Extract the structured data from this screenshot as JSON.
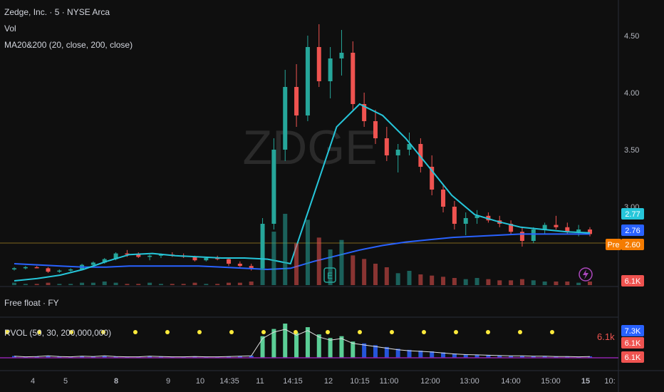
{
  "header": {
    "symbol_title": "Zedge, Inc. · 5 · NYSE Arca",
    "vol_label": "Vol",
    "ma_label": "MA20&200 (20, close, 200, close)",
    "watermark": "ZDGE"
  },
  "panels": {
    "free_float_label": "Free float · FY",
    "rvol_label": "RVOL (50, 30, 200,000,000)",
    "rvol_value": "6.1k"
  },
  "price_axis": {
    "ticks": [
      "4.50",
      "4.00",
      "3.50",
      "3.00"
    ],
    "badges": [
      {
        "label": "2.77",
        "color": "#26c6da"
      },
      {
        "label": "2.76",
        "color": "#2962ff"
      },
      {
        "label": "Pre",
        "color": "#f57c00"
      },
      {
        "label": "2.60",
        "color": "#f57c00"
      },
      {
        "label": "6.1K",
        "color": "#ef5350"
      },
      {
        "label": "7.3K",
        "color": "#2962ff"
      },
      {
        "label": "6.1K",
        "color": "#ef5350"
      },
      {
        "label": "6.1K",
        "color": "#ef5350"
      }
    ]
  },
  "time_axis": {
    "ticks": [
      "4",
      "5",
      "8",
      "9",
      "10",
      "14:35",
      "11",
      "14:15",
      "12",
      "10:15",
      "11:00",
      "12:00",
      "13:00",
      "14:00",
      "15:00",
      "15",
      "10:"
    ]
  },
  "colors": {
    "bg": "#0f0f0f",
    "up": "#26a69a",
    "down": "#ef5350",
    "ma20": "#26c6da",
    "ma200": "#2962ff",
    "dots": "#ffeb3b",
    "rvol_bright": "#69f0ae"
  },
  "icons": [
    "earnings-e-icon",
    "lightning-icon"
  ],
  "chart_data": {
    "type": "candlestick",
    "symbol": "ZDGE",
    "y_axis_range": [
      2.3,
      4.75
    ],
    "pre_market_price": 2.6,
    "last_price": 2.76,
    "ma20_last": 2.77,
    "ma200_last": 2.76,
    "series": [
      {
        "name": "MA20",
        "values": [
          2.35,
          2.37,
          2.4,
          2.45,
          2.52,
          2.58,
          2.59,
          2.57,
          2.56,
          2.55,
          2.55,
          2.54,
          2.5,
          3.1,
          3.7,
          3.9,
          3.8,
          3.6,
          3.35,
          3.1,
          2.93,
          2.87,
          2.82,
          2.8,
          2.78,
          2.77
        ]
      },
      {
        "name": "MA200",
        "values": [
          2.5,
          2.49,
          2.48,
          2.47,
          2.47,
          2.48,
          2.48,
          2.48,
          2.48,
          2.47,
          2.46,
          2.45,
          2.46,
          2.52,
          2.57,
          2.62,
          2.66,
          2.69,
          2.71,
          2.73,
          2.74,
          2.75,
          2.76,
          2.76,
          2.76,
          2.76
        ]
      }
    ],
    "candles": [
      [
        2.45,
        2.47,
        2.44,
        2.46
      ],
      [
        2.46,
        2.48,
        2.45,
        2.47
      ],
      [
        2.47,
        2.48,
        2.46,
        2.46
      ],
      [
        2.46,
        2.47,
        2.42,
        2.43
      ],
      [
        2.43,
        2.45,
        2.42,
        2.44
      ],
      [
        2.44,
        2.46,
        2.43,
        2.45
      ],
      [
        2.45,
        2.5,
        2.44,
        2.49
      ],
      [
        2.49,
        2.52,
        2.48,
        2.51
      ],
      [
        2.51,
        2.55,
        2.5,
        2.54
      ],
      [
        2.54,
        2.6,
        2.53,
        2.59
      ],
      [
        2.59,
        2.62,
        2.56,
        2.58
      ],
      [
        2.58,
        2.6,
        2.55,
        2.56
      ],
      [
        2.56,
        2.58,
        2.53,
        2.57
      ],
      [
        2.57,
        2.59,
        2.55,
        2.58
      ],
      [
        2.58,
        2.6,
        2.56,
        2.57
      ],
      [
        2.57,
        2.59,
        2.55,
        2.56
      ],
      [
        2.56,
        2.57,
        2.52,
        2.53
      ],
      [
        2.53,
        2.56,
        2.52,
        2.55
      ],
      [
        2.55,
        2.57,
        2.53,
        2.54
      ],
      [
        2.54,
        2.55,
        2.48,
        2.5
      ],
      [
        2.5,
        2.52,
        2.47,
        2.48
      ],
      [
        2.48,
        2.5,
        2.44,
        2.46
      ],
      [
        2.46,
        2.9,
        2.45,
        2.85
      ],
      [
        2.85,
        3.6,
        2.8,
        3.5
      ],
      [
        3.5,
        4.2,
        3.4,
        4.05
      ],
      [
        4.05,
        4.25,
        3.7,
        3.8
      ],
      [
        3.8,
        4.5,
        3.75,
        4.4
      ],
      [
        4.4,
        4.6,
        4.05,
        4.1
      ],
      [
        4.1,
        4.4,
        3.95,
        4.3
      ],
      [
        4.3,
        4.55,
        4.15,
        4.35
      ],
      [
        4.35,
        4.45,
        3.85,
        3.9
      ],
      [
        3.9,
        4.0,
        3.7,
        3.75
      ],
      [
        3.75,
        3.85,
        3.55,
        3.6
      ],
      [
        3.6,
        3.7,
        3.4,
        3.45
      ],
      [
        3.45,
        3.55,
        3.3,
        3.5
      ],
      [
        3.5,
        3.65,
        3.45,
        3.55
      ],
      [
        3.55,
        3.6,
        3.3,
        3.35
      ],
      [
        3.35,
        3.45,
        3.1,
        3.15
      ],
      [
        3.15,
        3.2,
        2.95,
        3.0
      ],
      [
        3.0,
        3.05,
        2.8,
        2.85
      ],
      [
        2.85,
        2.95,
        2.75,
        2.9
      ],
      [
        2.9,
        2.97,
        2.85,
        2.92
      ],
      [
        2.92,
        2.95,
        2.86,
        2.88
      ],
      [
        2.88,
        2.92,
        2.82,
        2.85
      ],
      [
        2.85,
        2.88,
        2.75,
        2.78
      ],
      [
        2.78,
        2.82,
        2.65,
        2.7
      ],
      [
        2.7,
        2.82,
        2.68,
        2.8
      ],
      [
        2.8,
        2.86,
        2.76,
        2.84
      ],
      [
        2.84,
        2.92,
        2.8,
        2.82
      ],
      [
        2.82,
        2.86,
        2.76,
        2.78
      ],
      [
        2.78,
        2.84,
        2.74,
        2.8
      ],
      [
        2.8,
        2.82,
        2.74,
        2.76
      ]
    ],
    "volume": [
      2,
      1,
      1,
      2,
      1,
      1,
      2,
      2,
      3,
      2,
      1,
      1,
      2,
      1,
      1,
      1,
      2,
      1,
      1,
      2,
      2,
      3,
      20,
      45,
      60,
      35,
      55,
      40,
      30,
      38,
      25,
      22,
      18,
      15,
      10,
      12,
      9,
      8,
      7,
      6,
      5,
      6,
      5,
      4,
      4,
      5,
      4,
      3,
      3,
      3,
      2,
      3
    ],
    "rvol": [
      5,
      3,
      4,
      6,
      4,
      3,
      5,
      4,
      6,
      4,
      3,
      3,
      5,
      4,
      3,
      3,
      4,
      3,
      3,
      4,
      5,
      6,
      60,
      80,
      95,
      70,
      85,
      65,
      55,
      60,
      45,
      40,
      35,
      30,
      25,
      22,
      20,
      18,
      15,
      12,
      10,
      9,
      8,
      7,
      6,
      6,
      5,
      5,
      4,
      4,
      3,
      4
    ],
    "rvol_dots": 18
  }
}
